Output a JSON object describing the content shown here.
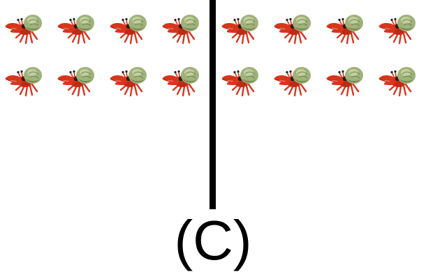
{
  "figure": {
    "label": "(C)",
    "icon": "hermit-crab-icon",
    "groups": [
      {
        "name": "left",
        "rows": 2,
        "per_row": 4,
        "count": 8
      },
      {
        "name": "right",
        "rows": 2,
        "per_row": 4,
        "count": 8
      }
    ],
    "colors": {
      "crab_body": "#d8351c",
      "crab_shadow": "#a82410",
      "shell": "#9fb27a",
      "shell_highlight": "#c9d4a6",
      "shell_shadow": "#6f8150",
      "divider": "#000000"
    }
  }
}
